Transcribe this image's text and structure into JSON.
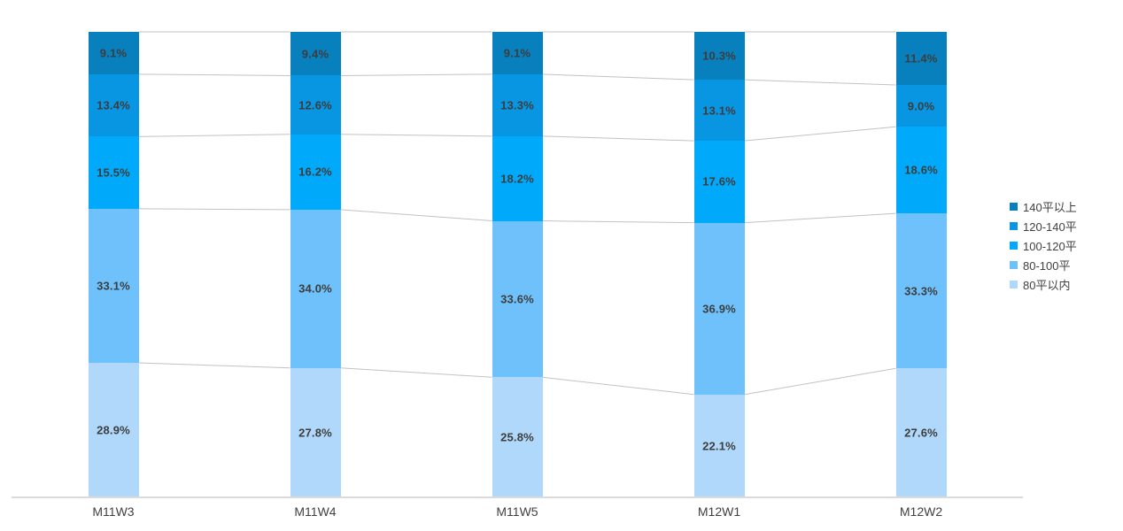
{
  "chart_data": {
    "type": "bar",
    "variant": "stacked-percent-column",
    "title": "",
    "xlabel": "",
    "ylabel": "",
    "ylim": [
      0,
      100
    ],
    "grid": false,
    "legend_position": "right",
    "connector_lines": true,
    "value_suffix": "%",
    "categories": [
      "M11W3",
      "M11W4",
      "M11W5",
      "M12W1",
      "M12W2"
    ],
    "series": [
      {
        "name": "140平以上",
        "color": "#0780bd",
        "values": [
          9.1,
          9.4,
          9.1,
          10.3,
          11.4
        ]
      },
      {
        "name": "120-140平",
        "color": "#0895e2",
        "values": [
          13.4,
          12.6,
          13.3,
          13.1,
          9.0
        ]
      },
      {
        "name": "100-120平",
        "color": "#00a9f9",
        "values": [
          15.5,
          16.2,
          18.2,
          17.6,
          18.6
        ]
      },
      {
        "name": "80-100平",
        "color": "#6ec1fb",
        "values": [
          33.1,
          34.0,
          33.6,
          36.9,
          33.3
        ]
      },
      {
        "name": "80平以内",
        "color": "#b0d8fb",
        "values": [
          28.9,
          27.8,
          25.8,
          22.1,
          27.6
        ]
      }
    ],
    "colors": {
      "label_text": "#3d3d3d",
      "axis_text": "#404040",
      "axis_line": "#dadada",
      "connector_line": "#c2c2c2",
      "background": "#ffffff"
    }
  }
}
